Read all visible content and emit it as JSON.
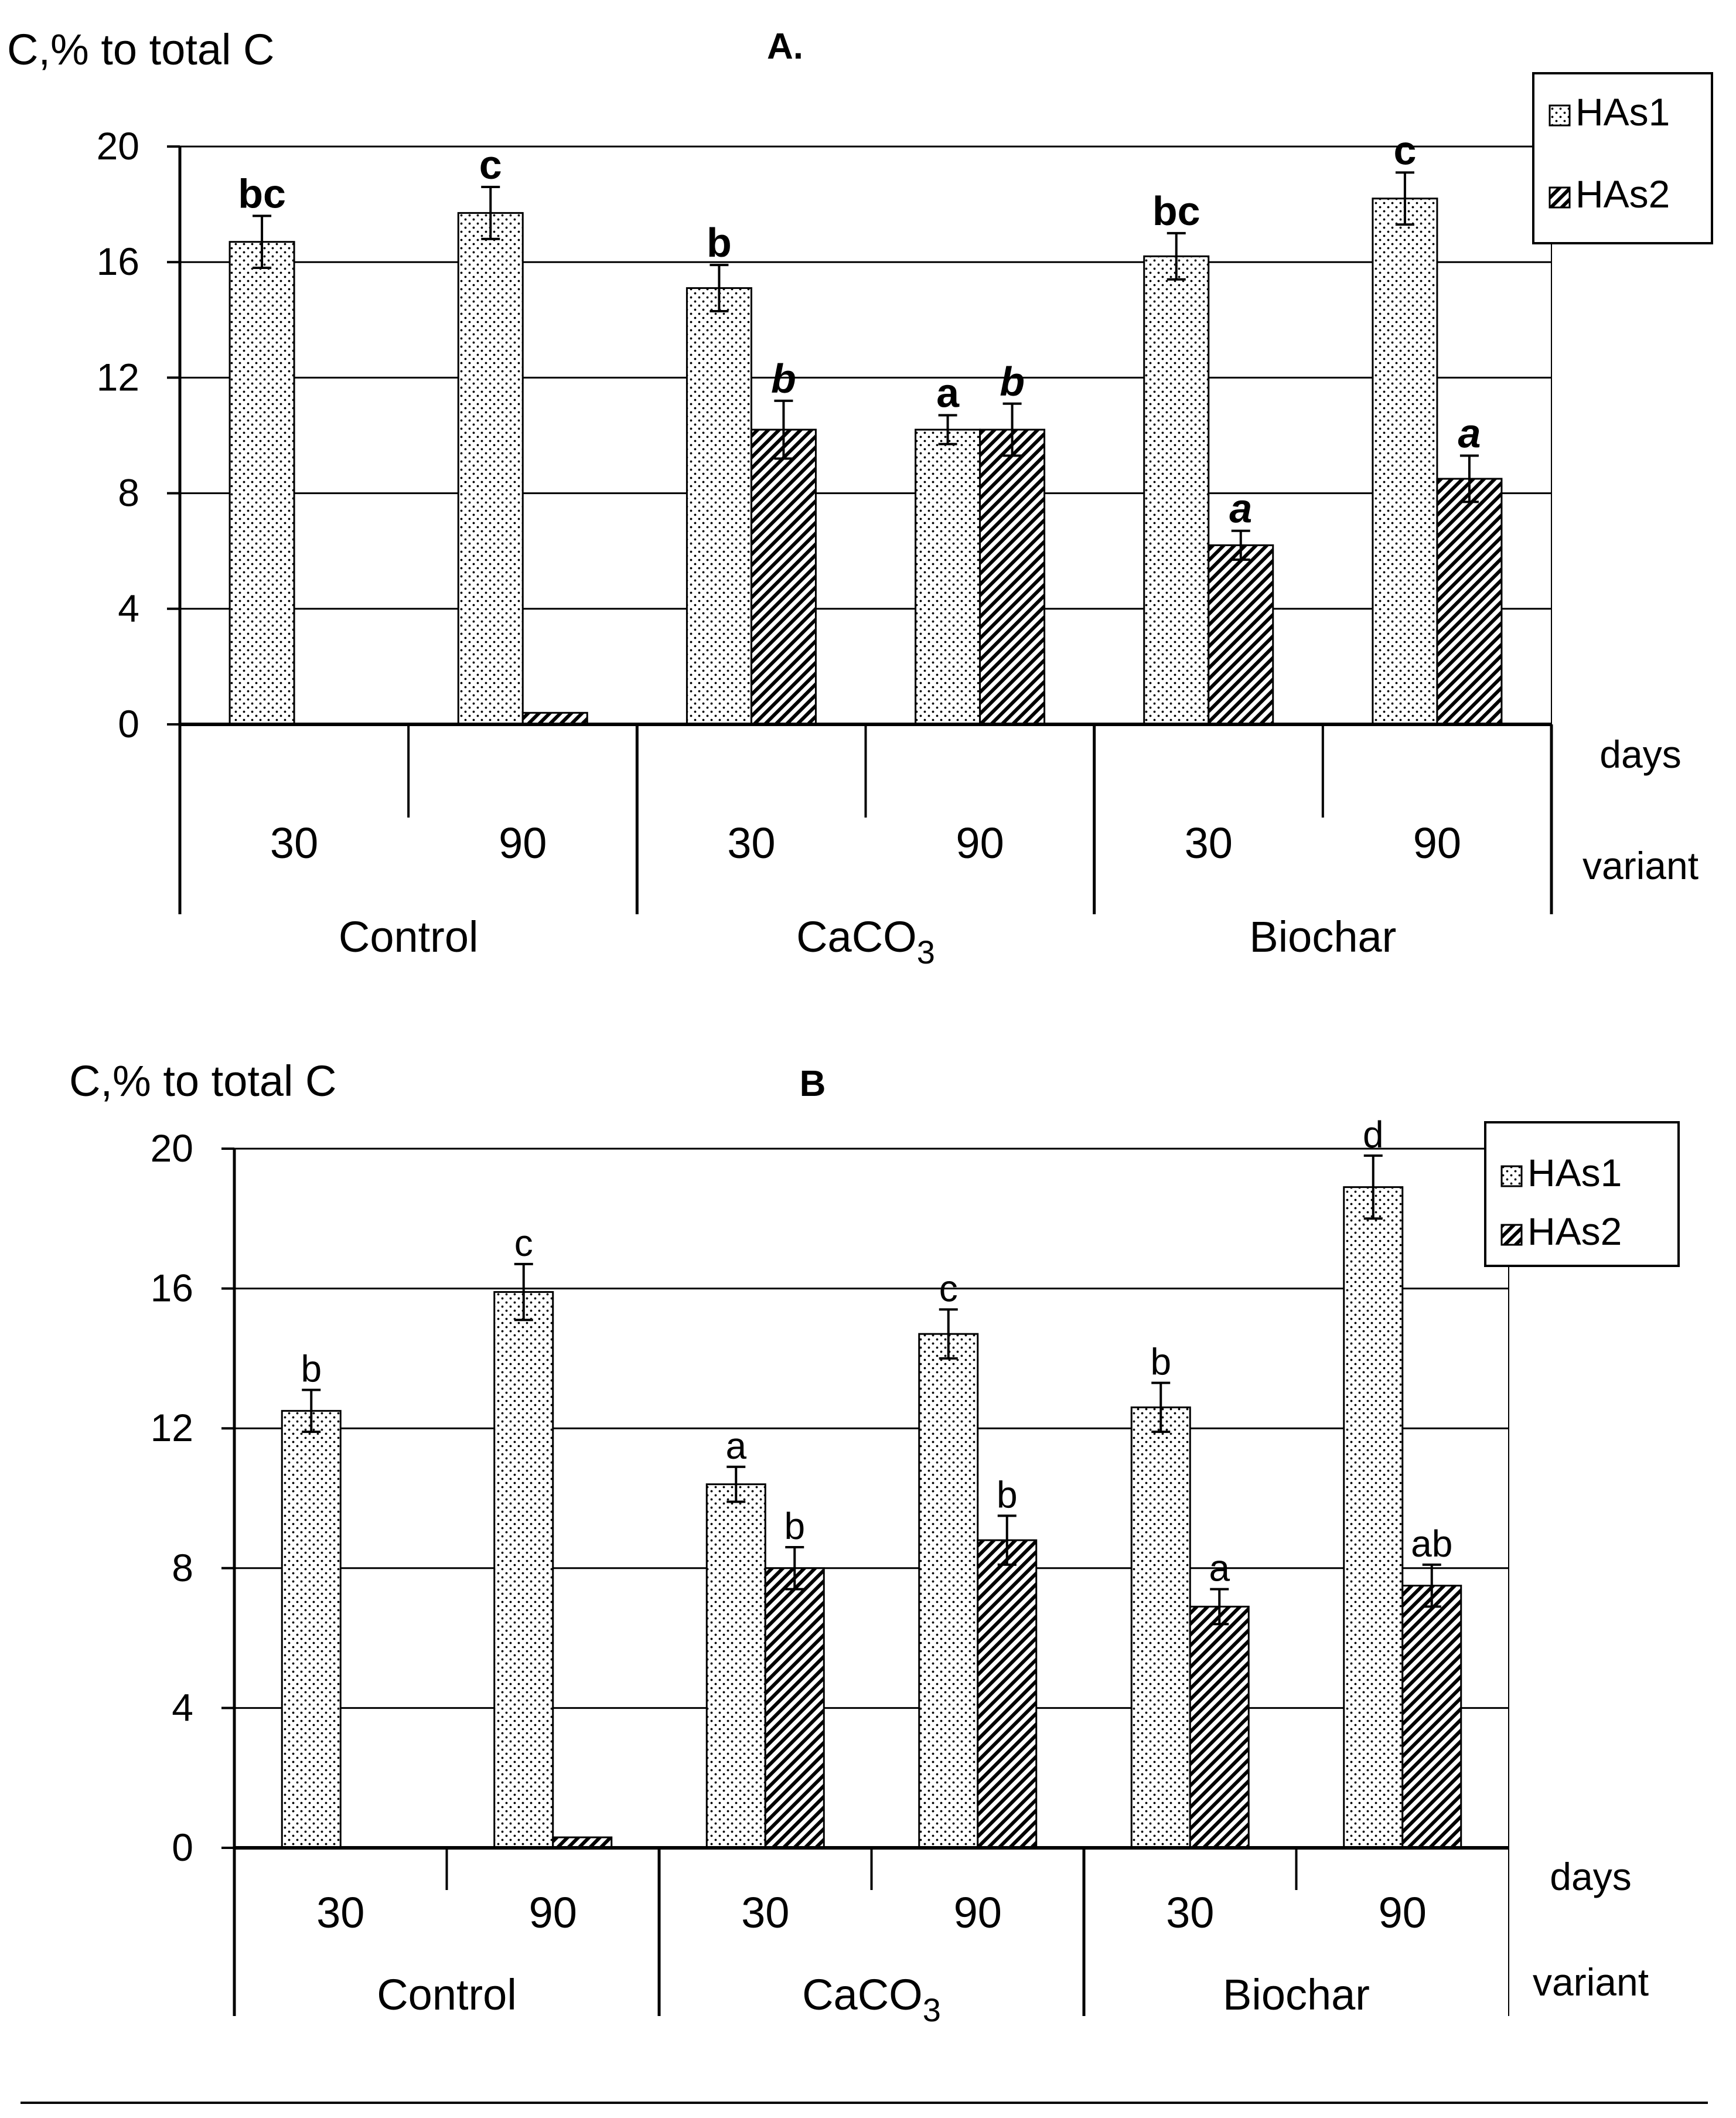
{
  "chart_data": [
    {
      "type": "bar",
      "title": "A.",
      "ylabel": "C,% to total C",
      "ylim": [
        0,
        20
      ],
      "yticks": [
        0,
        4,
        8,
        12,
        16,
        20
      ],
      "x_level1_label": "days",
      "x_level2_label": "variant",
      "groups": [
        {
          "variant": "Control",
          "days": [
            "30",
            "90"
          ]
        },
        {
          "variant": "CaCO3",
          "days": [
            "30",
            "90"
          ]
        },
        {
          "variant": "Biochar",
          "days": [
            "30",
            "90"
          ]
        }
      ],
      "categories": [
        "Control 30",
        "Control 90",
        "CaCO3 30",
        "CaCO3 90",
        "Biochar 30",
        "Biochar 90"
      ],
      "series": [
        {
          "name": "HAs1",
          "pattern": "dots",
          "values": [
            16.7,
            17.7,
            15.1,
            10.2,
            16.2,
            18.2
          ],
          "errors": [
            0.9,
            0.9,
            0.8,
            0.5,
            0.8,
            0.9
          ],
          "letters": [
            "bc",
            "c",
            "b",
            "a",
            "bc",
            "c"
          ]
        },
        {
          "name": "HAs2",
          "pattern": "hatch",
          "values": [
            0,
            0.4,
            10.2,
            10.2,
            6.2,
            8.5
          ],
          "errors": [
            0,
            0,
            1.0,
            0.9,
            0.5,
            0.8
          ],
          "letters": [
            "",
            "",
            "b",
            "b",
            "a",
            "a"
          ]
        }
      ]
    },
    {
      "type": "bar",
      "title": "B",
      "ylabel": "C,% to total C",
      "ylim": [
        0,
        20
      ],
      "yticks": [
        0,
        4,
        8,
        12,
        16,
        20
      ],
      "x_level1_label": "days",
      "x_level2_label": "variant",
      "groups": [
        {
          "variant": "Control",
          "days": [
            "30",
            "90"
          ]
        },
        {
          "variant": "CaCO3",
          "days": [
            "30",
            "90"
          ]
        },
        {
          "variant": "Biochar",
          "days": [
            "30",
            "90"
          ]
        }
      ],
      "categories": [
        "Control 30",
        "Control 90",
        "CaCO3 30",
        "CaCO3 90",
        "Biochar 30",
        "Biochar 90"
      ],
      "series": [
        {
          "name": "HAs1",
          "pattern": "dots",
          "values": [
            12.5,
            15.9,
            10.4,
            14.7,
            12.6,
            18.9
          ],
          "errors": [
            0.6,
            0.8,
            0.5,
            0.7,
            0.7,
            0.9
          ],
          "letters": [
            "b",
            "c",
            "a",
            "c",
            "b",
            "d"
          ]
        },
        {
          "name": "HAs2",
          "pattern": "hatch",
          "values": [
            0,
            0.3,
            8.0,
            8.8,
            6.9,
            7.5
          ],
          "errors": [
            0,
            0,
            0.6,
            0.7,
            0.5,
            0.6
          ],
          "letters": [
            "",
            "",
            "b",
            "b",
            "a",
            "ab"
          ]
        }
      ]
    }
  ]
}
